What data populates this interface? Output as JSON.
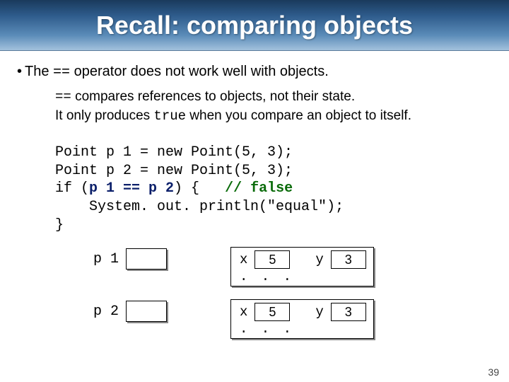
{
  "title": "Recall: comparing objects",
  "bullet": {
    "prefix": "•",
    "text1": "The ",
    "op": "==",
    "text2": " operator does not work well with objects."
  },
  "sub": {
    "op": "==",
    "line1_rest": " compares references to objects, not their state.",
    "line2_a": "It only produces ",
    "true_kw": "true",
    "line2_b": " when you compare an object to itself."
  },
  "code": {
    "l1": "Point p 1 = new Point(5, 3);",
    "l2": "Point p 2 = new Point(5, 3);",
    "l3a": "if (",
    "l3bold": "p 1 == p 2",
    "l3b": ") {   ",
    "l3comment": "// false",
    "l4": "    System. out. println(\"equal\");",
    "l5": "}"
  },
  "diagram": {
    "rows": [
      {
        "label": "p 1",
        "x_label": "x",
        "x_val": "5",
        "y_label": "y",
        "y_val": "3",
        "dots": ". . ."
      },
      {
        "label": "p 2",
        "x_label": "x",
        "x_val": "5",
        "y_label": "y",
        "y_val": "3",
        "dots": ". . ."
      }
    ]
  },
  "slide_number": "39"
}
